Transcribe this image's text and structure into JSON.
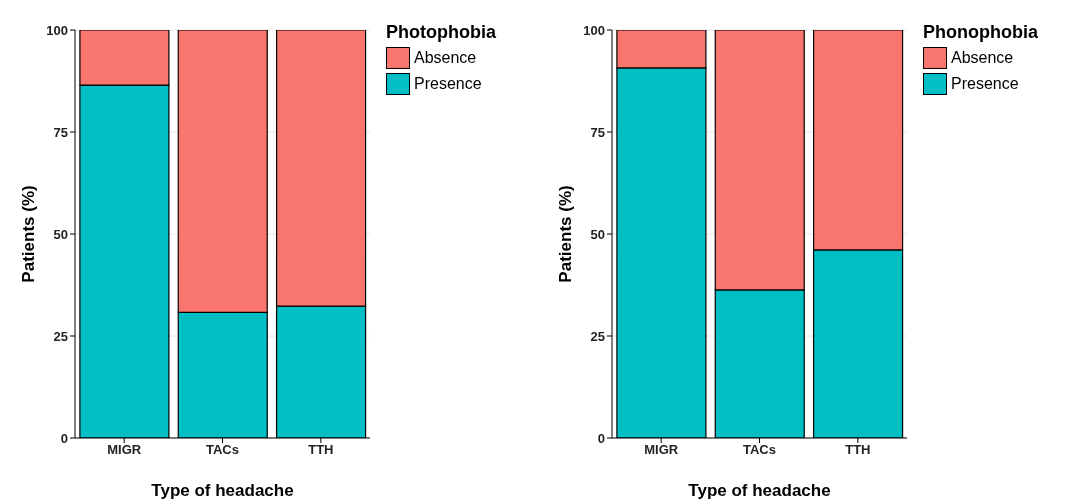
{
  "chart_data": [
    {
      "type": "bar",
      "stacked": true,
      "categories": [
        "MIGR",
        "TACs",
        "TTH"
      ],
      "xlabel": "Type of headache",
      "ylabel": "Patients (%)",
      "legend_title": "Photophobia",
      "legend": "right",
      "grid": "y",
      "ylim": [
        0,
        100
      ],
      "yticks": [
        0,
        25,
        50,
        75,
        100
      ],
      "series": [
        {
          "name": "Presence",
          "color": "#00bfc4",
          "values": [
            86.5,
            30.8,
            32.3
          ]
        },
        {
          "name": "Absence",
          "color": "#f8766d",
          "values": [
            13.5,
            69.2,
            67.7
          ]
        }
      ]
    },
    {
      "type": "bar",
      "stacked": true,
      "categories": [
        "MIGR",
        "TACs",
        "TTH"
      ],
      "xlabel": "Type of headache",
      "ylabel": "Patients (%)",
      "legend_title": "Phonophobia",
      "legend": "right",
      "grid": "y",
      "ylim": [
        0,
        100
      ],
      "yticks": [
        0,
        25,
        50,
        75,
        100
      ],
      "series": [
        {
          "name": "Presence",
          "color": "#00bfc4",
          "values": [
            90.7,
            36.3,
            46.1
          ]
        },
        {
          "name": "Absence",
          "color": "#f8766d",
          "values": [
            9.3,
            63.7,
            53.9
          ]
        }
      ]
    }
  ]
}
